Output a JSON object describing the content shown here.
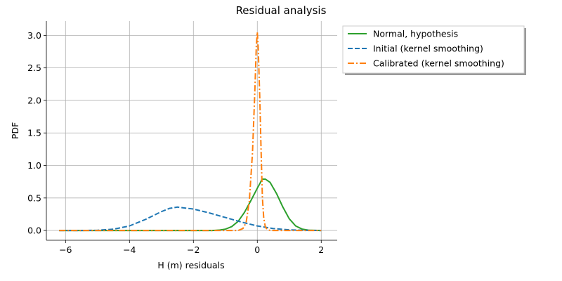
{
  "chart_data": {
    "type": "line",
    "title": "Residual analysis",
    "xlabel": "H (m) residuals",
    "ylabel": "PDF",
    "xlim": [
      -6.6,
      2.5
    ],
    "ylim": [
      -0.15,
      3.22
    ],
    "xticks": [
      -6,
      -4,
      -2,
      0,
      2
    ],
    "xtick_labels": [
      "−6",
      "−4",
      "−2",
      "0",
      "2"
    ],
    "yticks": [
      0.0,
      0.5,
      1.0,
      1.5,
      2.0,
      2.5,
      3.0
    ],
    "ytick_labels": [
      "0.0",
      "0.5",
      "1.0",
      "1.5",
      "2.0",
      "2.5",
      "3.0"
    ],
    "grid": true,
    "legend_position": "outside-right-top",
    "series": [
      {
        "name": "Normal, hypothesis",
        "color": "#2ca02c",
        "style": "solid",
        "x": [
          -6.2,
          -1.4,
          -1.2,
          -1.0,
          -0.8,
          -0.6,
          -0.4,
          -0.2,
          0.0,
          0.1,
          0.15,
          0.25,
          0.4,
          0.6,
          0.8,
          1.0,
          1.2,
          1.4,
          1.6,
          2.0
        ],
        "y": [
          0.0,
          0.0,
          0.006,
          0.02,
          0.06,
          0.14,
          0.28,
          0.46,
          0.65,
          0.74,
          0.79,
          0.79,
          0.74,
          0.57,
          0.36,
          0.18,
          0.07,
          0.022,
          0.005,
          0.0
        ]
      },
      {
        "name": "Initial (kernel smoothing)",
        "color": "#1f77b4",
        "style": "dashed",
        "x": [
          -6.2,
          -5.5,
          -5.0,
          -4.5,
          -4.0,
          -3.5,
          -3.0,
          -2.75,
          -2.5,
          -2.0,
          -1.5,
          -1.0,
          -0.5,
          0.0,
          0.5,
          1.0,
          1.5,
          2.0
        ],
        "y": [
          0.0,
          0.0,
          0.004,
          0.02,
          0.07,
          0.17,
          0.29,
          0.34,
          0.36,
          0.33,
          0.27,
          0.2,
          0.13,
          0.07,
          0.03,
          0.01,
          0.003,
          0.0
        ]
      },
      {
        "name": "Calibrated (kernel smoothing)",
        "color": "#ff7f0e",
        "style": "dashdot",
        "x": [
          -6.2,
          -0.6,
          -0.45,
          -0.35,
          -0.25,
          -0.15,
          -0.08,
          -0.03,
          0.0,
          0.03,
          0.08,
          0.12,
          0.16,
          0.2,
          0.25,
          0.3,
          0.4,
          2.0
        ],
        "y": [
          0.0,
          0.0,
          0.03,
          0.12,
          0.45,
          1.2,
          2.1,
          2.85,
          3.05,
          2.8,
          2.0,
          1.2,
          0.5,
          0.2,
          0.06,
          0.02,
          0.0,
          0.0
        ]
      }
    ]
  }
}
